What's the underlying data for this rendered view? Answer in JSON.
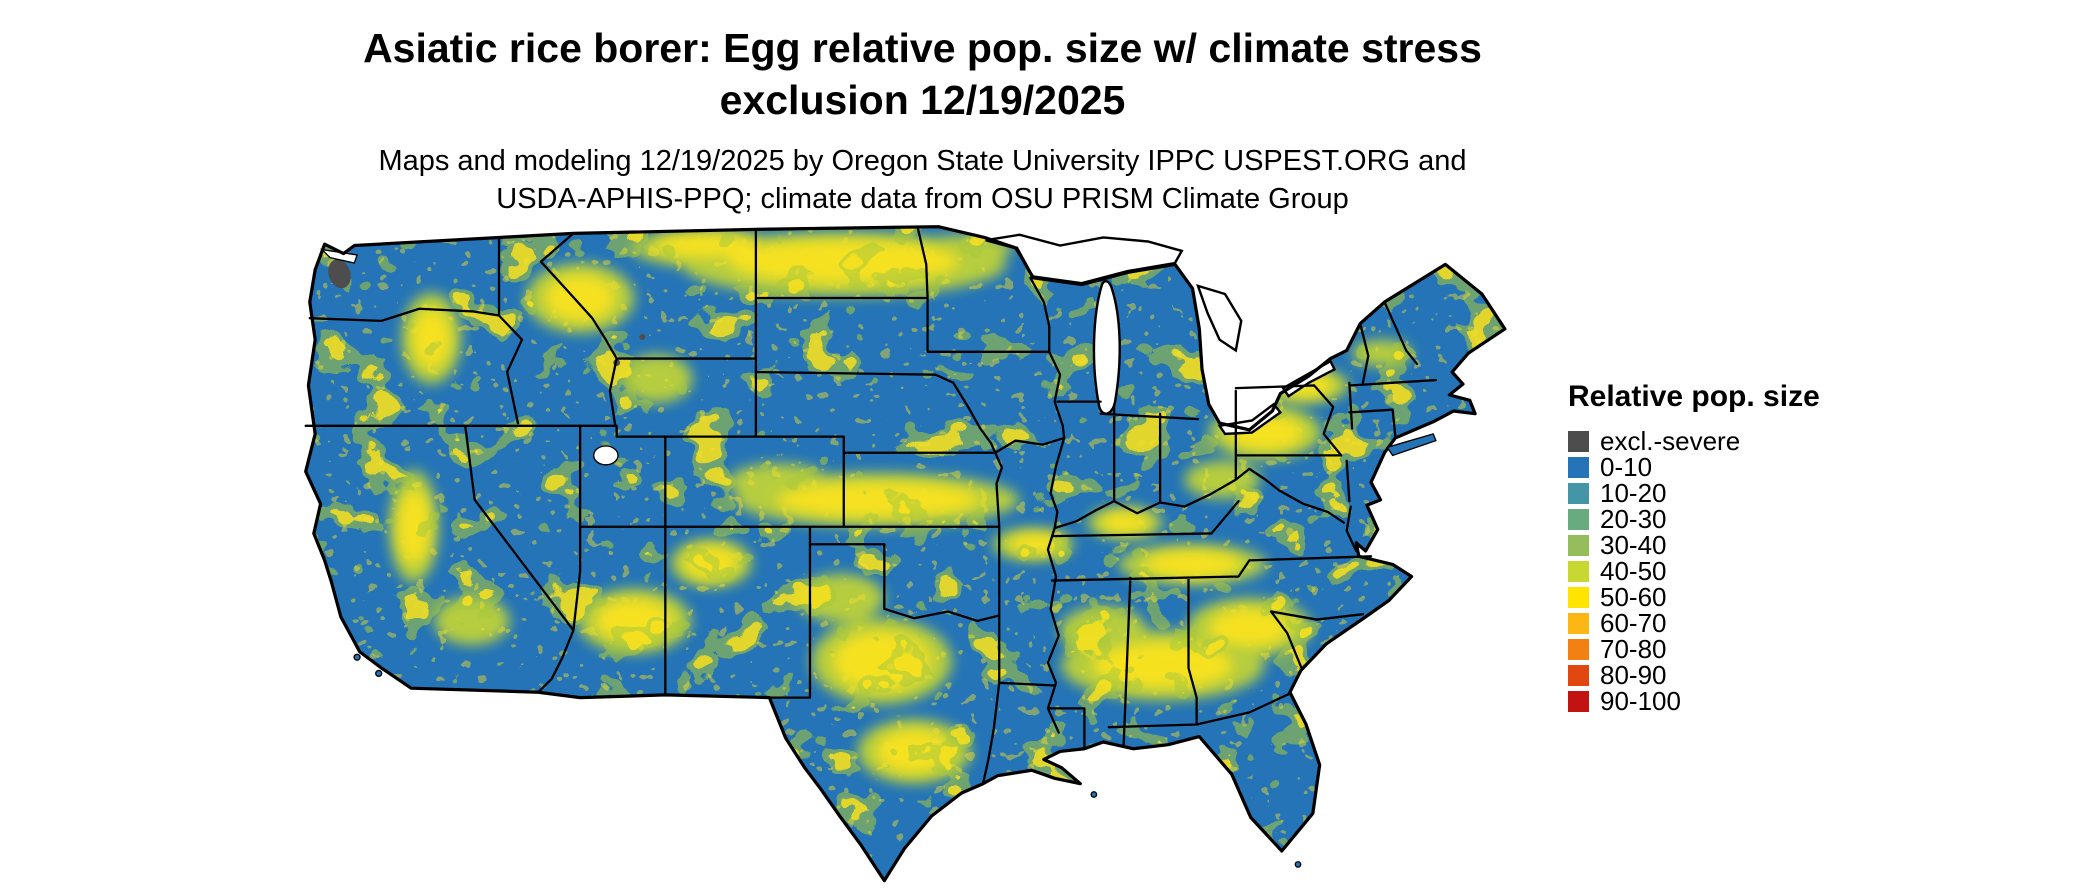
{
  "title": {
    "line1": "Asiatic rice borer: Egg relative pop. size w/ climate stress",
    "line2": "exclusion 12/19/2025"
  },
  "subtitle": {
    "line1": "Maps and modeling 12/19/2025 by Oregon State University IPPC USPEST.ORG and",
    "line2": "USDA-APHIS-PPQ; climate data from OSU PRISM Climate Group"
  },
  "map": {
    "region": "Continental United States",
    "base_color": "#2474b7",
    "mottle_green": "#c3d534",
    "mottle_yellow": "#ffe41c",
    "border_color": "#000000",
    "water_color": "#ffffff",
    "excluded_color": "#4d4d4d"
  },
  "legend": {
    "title": "Relative pop. size",
    "entries": [
      {
        "label": "excl.-severe",
        "color": "#4d4d4d"
      },
      {
        "label": "0-10",
        "color": "#2474b7"
      },
      {
        "label": "10-20",
        "color": "#4495a5"
      },
      {
        "label": "20-30",
        "color": "#67ab7e"
      },
      {
        "label": "30-40",
        "color": "#95bd5b"
      },
      {
        "label": "40-50",
        "color": "#c8d832"
      },
      {
        "label": "50-60",
        "color": "#ffe400"
      },
      {
        "label": "60-70",
        "color": "#fdb714"
      },
      {
        "label": "70-80",
        "color": "#f28013"
      },
      {
        "label": "80-90",
        "color": "#e2470f"
      },
      {
        "label": "90-100",
        "color": "#c31212"
      }
    ]
  }
}
